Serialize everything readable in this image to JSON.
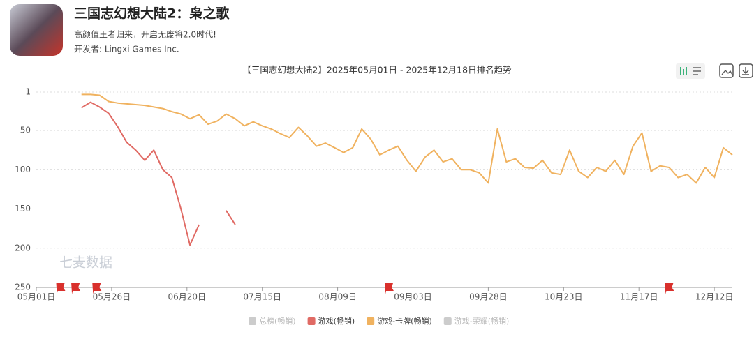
{
  "header": {
    "title": "三国志幻想大陆2：枭之歌",
    "subtitle": "高颜值王者归来，开启无废将2.0时代!",
    "developer": "开发者: Lingxi Games Inc."
  },
  "chart_data": {
    "type": "line",
    "title": "【三国志幻想大陆2】2025年05月01日 - 2025年12月18日排名趋势",
    "watermark": "七麦数据",
    "x": [
      "05月16日",
      "05月19日",
      "05月22日",
      "05月25日",
      "05月28日",
      "05月31日",
      "06月03日",
      "06月06日",
      "06月09日",
      "06月12日",
      "06月15日",
      "06月18日",
      "06月21日",
      "06月24日",
      "06月27日",
      "06月30日",
      "07月03日",
      "07月06日",
      "07月09日",
      "07月12日",
      "07月15日",
      "07月18日",
      "07月21日",
      "07月24日",
      "07月27日",
      "07月30日",
      "08月02日",
      "08月05日",
      "08月08日",
      "08月11日",
      "08月14日",
      "08月17日",
      "08月20日",
      "08月23日",
      "08月26日",
      "08月29日",
      "09月01日",
      "09月04日",
      "09月07日",
      "09月10日",
      "09月13日",
      "09月16日",
      "09月19日",
      "09月22日",
      "09月25日",
      "09月28日",
      "10月01日",
      "10月04日",
      "10月07日",
      "10月10日",
      "10月13日",
      "10月16日",
      "10月19日",
      "10月22日",
      "10月25日",
      "10月28日",
      "10月31日",
      "11月03日",
      "11月06日",
      "11月09日",
      "11月12日",
      "11月15日",
      "11月18日",
      "11月21日",
      "11月24日",
      "11月27日",
      "11月30日",
      "12月03日",
      "12月06日",
      "12月09日",
      "12月12日",
      "12月15日",
      "12月18日"
    ],
    "series": [
      {
        "name": "游戏(畅销)",
        "color": "#e06a64",
        "values": [
          21,
          14,
          20,
          28,
          45,
          65,
          75,
          88,
          75,
          100,
          110,
          150,
          196,
          170,
          null,
          null,
          152,
          170,
          null,
          null,
          null,
          null,
          null,
          null,
          null,
          null,
          null,
          null,
          null,
          null,
          null,
          null,
          null,
          null,
          null,
          null,
          null,
          null,
          null,
          null,
          null,
          null,
          null,
          null,
          null,
          null,
          null,
          null,
          null,
          null,
          null,
          null,
          null,
          null,
          null,
          null,
          null,
          null,
          null,
          null,
          null,
          null,
          null,
          null,
          null,
          null,
          null,
          null,
          null,
          null,
          null,
          null,
          null
        ]
      },
      {
        "name": "游戏-卡牌(畅销)",
        "color": "#f0b25f",
        "values": [
          4,
          4,
          5,
          13,
          15,
          16,
          17,
          18,
          20,
          22,
          26,
          29,
          35,
          30,
          42,
          38,
          29,
          35,
          44,
          39,
          44,
          48,
          54,
          59,
          46,
          57,
          70,
          66,
          72,
          78,
          72,
          48,
          61,
          81,
          75,
          70,
          88,
          102,
          84,
          75,
          90,
          86,
          100,
          100,
          104,
          117,
          48,
          90,
          86,
          97,
          98,
          88,
          104,
          106,
          75,
          102,
          110,
          97,
          102,
          88,
          106,
          70,
          53,
          102,
          95,
          97,
          110,
          106,
          117,
          97,
          110,
          72,
          81
        ]
      }
    ],
    "inactive_legend": [
      {
        "name": "总榜(畅销)",
        "color": "#cccccc"
      },
      {
        "name": "游戏-荣耀(畅销)",
        "color": "#cccccc"
      }
    ],
    "xlim": [
      "05月01日",
      "12月18日"
    ],
    "xticks": [
      "05月01日",
      "05月26日",
      "06月20日",
      "07月15日",
      "08月09日",
      "09月03日",
      "09月28日",
      "10月23日",
      "11月17日",
      "12月12日"
    ],
    "ylim": [
      1,
      250
    ],
    "y_inverted": true,
    "yticks": [
      1,
      50,
      100,
      150,
      200,
      250
    ],
    "grid": true,
    "markers": {
      "color": "#d9302c",
      "x": [
        "05月09日",
        "05月14日",
        "05月21日",
        "08月26日",
        "11月27日"
      ]
    }
  }
}
